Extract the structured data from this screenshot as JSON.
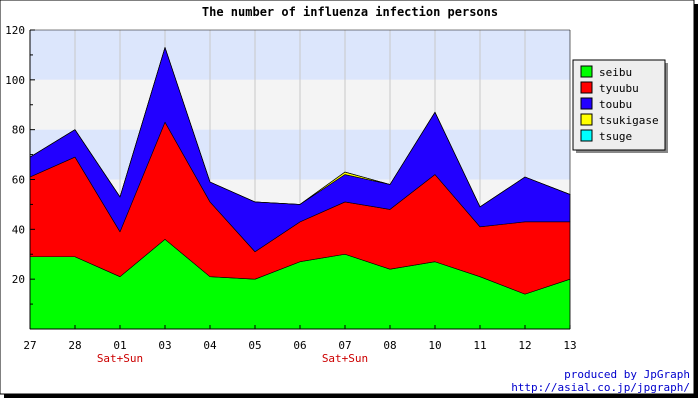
{
  "chart_data": {
    "type": "area",
    "stacked": true,
    "title": "The number of influenza infection persons",
    "xlabel": "",
    "ylabel": "",
    "ylim": [
      0,
      120
    ],
    "yticks": [
      20,
      40,
      60,
      80,
      100,
      120
    ],
    "categories": [
      "27",
      "28",
      "01",
      "03",
      "04",
      "05",
      "06",
      "07",
      "08",
      "10",
      "11",
      "12",
      "13"
    ],
    "annotations": [
      {
        "category": "01",
        "text": "Sat+Sun"
      },
      {
        "category": "07",
        "text": "Sat+Sun"
      }
    ],
    "grid": true,
    "legend_position": "right",
    "series": [
      {
        "name": "seibu",
        "color": "#00ff00",
        "values": [
          29,
          29,
          21,
          36,
          21,
          20,
          27,
          30,
          24,
          27,
          21,
          14,
          20
        ]
      },
      {
        "name": "tyuubu",
        "color": "#ff0000",
        "values": [
          32,
          40,
          18,
          47,
          30,
          11,
          16,
          21,
          24,
          35,
          20,
          29,
          23
        ]
      },
      {
        "name": "toubu",
        "color": "#2200ff",
        "values": [
          8,
          11,
          14,
          30,
          8,
          20,
          7,
          11,
          10,
          25,
          8,
          18,
          11
        ]
      },
      {
        "name": "tsukigase",
        "color": "#ffff00",
        "values": [
          0,
          0,
          0,
          0,
          0,
          0,
          0,
          1,
          0,
          0,
          0,
          0,
          0
        ]
      },
      {
        "name": "tsuge",
        "color": "#00ffff",
        "values": [
          0,
          0,
          0,
          0,
          0,
          0,
          0,
          0,
          0,
          0,
          0,
          0,
          0
        ]
      }
    ],
    "colors": {
      "band_blue": "#dce6fc",
      "band_white": "#f4f4f4",
      "grid": "#c8c8c8",
      "annotation": "#cc0000",
      "credit": "#0000cc"
    }
  },
  "credit": {
    "line1": "produced by JpGraph",
    "line2": "http://asial.co.jp/jpgraph/"
  }
}
